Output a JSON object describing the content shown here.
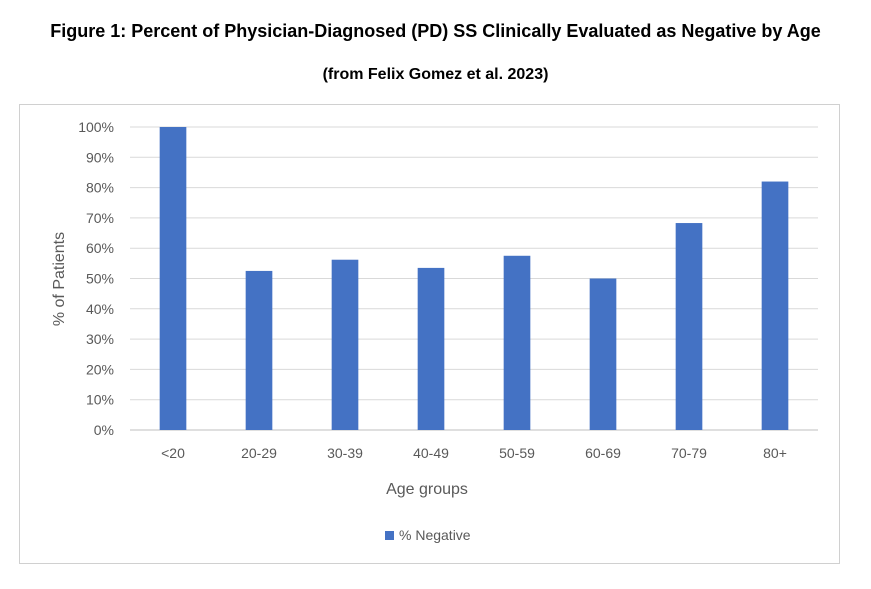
{
  "chart_data": {
    "type": "bar",
    "title": "Figure 1: Percent of Physician-Diagnosed (PD) SS Clinically Evaluated as Negative by Age",
    "subtitle": "(from Felix Gomez et al. 2023)",
    "categories": [
      "<20",
      "20-29",
      "30-39",
      "40-49",
      "50-59",
      "60-69",
      "70-79",
      "80+"
    ],
    "series": [
      {
        "name": "% Negative",
        "values": [
          100,
          52.5,
          56.2,
          53.5,
          57.5,
          50,
          68.3,
          82
        ]
      }
    ],
    "xlabel": "Age groups",
    "ylabel": "% of Patients",
    "ylim": [
      0,
      100
    ],
    "yticks": [
      "0%",
      "10%",
      "20%",
      "30%",
      "40%",
      "50%",
      "60%",
      "70%",
      "80%",
      "90%",
      "100%"
    ],
    "grid": true,
    "legend": "bottom-center",
    "bar_color": "#4472c4"
  }
}
